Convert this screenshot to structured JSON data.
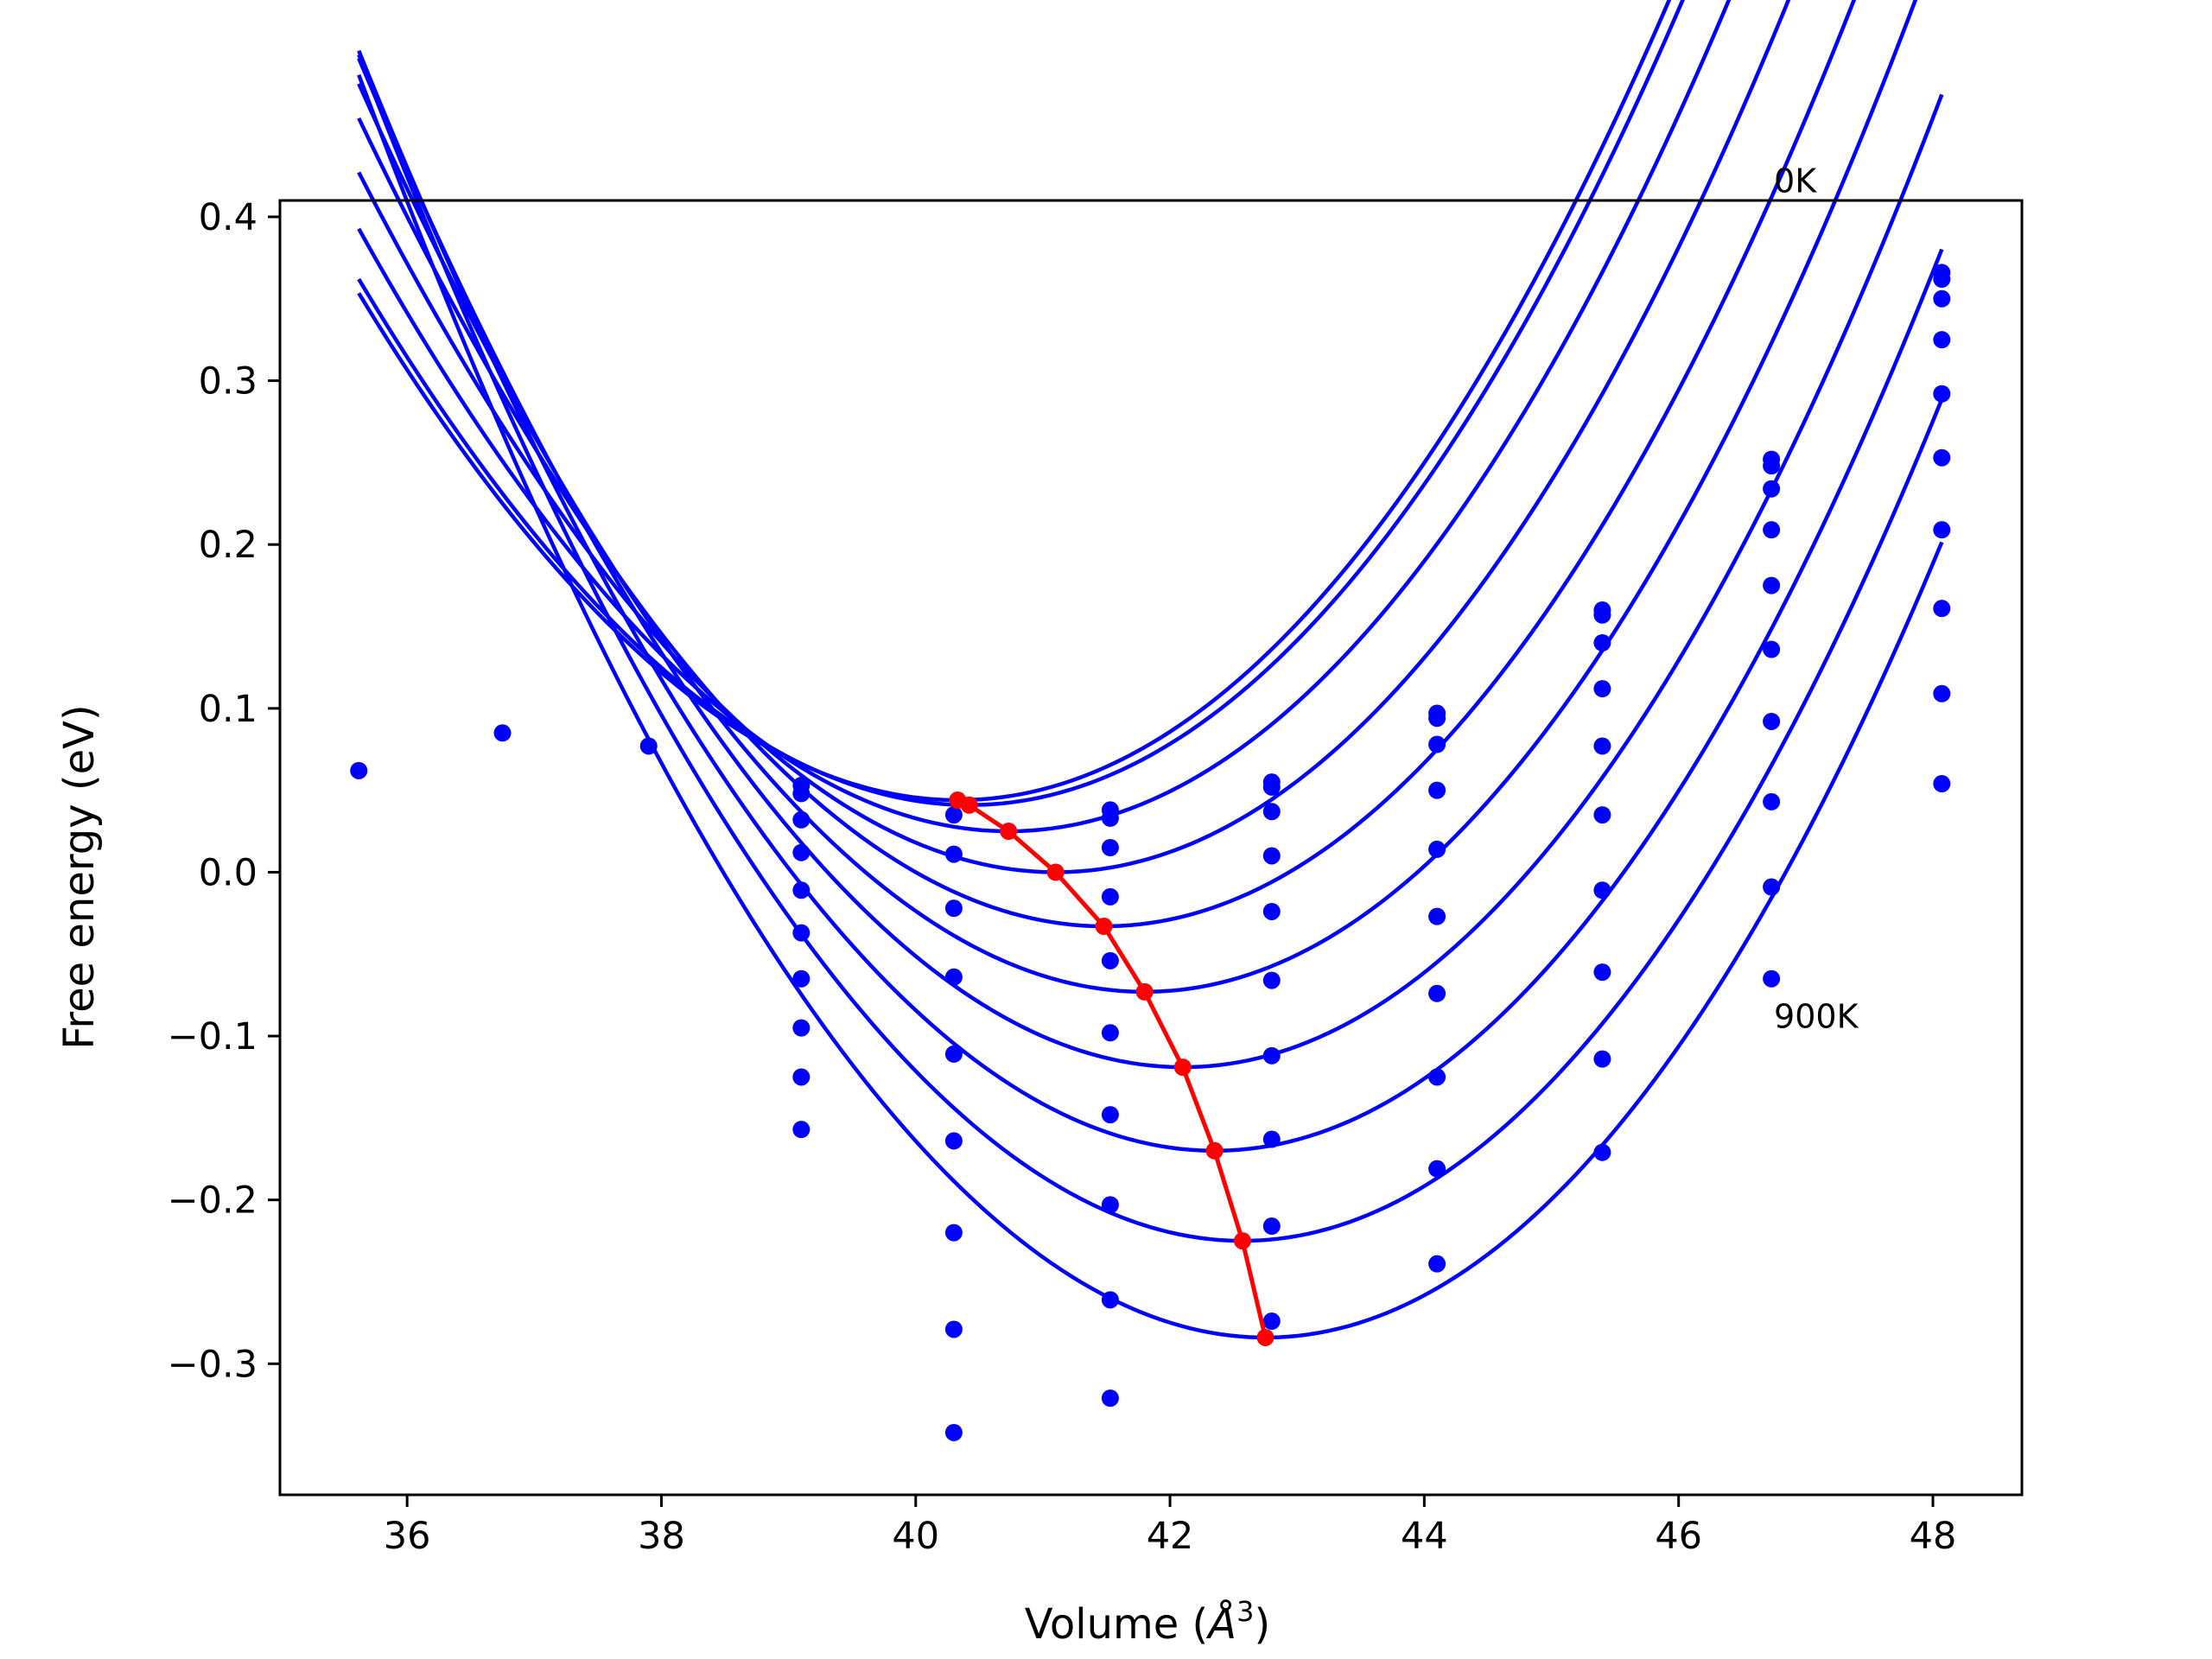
{
  "chart_data": {
    "type": "line",
    "title": "",
    "xlabel": "Volume (",
    "xlabel_symbol": "Å",
    "xlabel_power": "3",
    "xlabel_close": ")",
    "ylabel": "Free energy (eV)",
    "xlim": [
      35.0,
      48.7
    ],
    "ylim": [
      -0.38,
      0.41
    ],
    "x_ticks": [
      36,
      38,
      40,
      42,
      44,
      46,
      48
    ],
    "x_tick_labels": [
      "36",
      "38",
      "40",
      "42",
      "44",
      "46",
      "48"
    ],
    "y_ticks": [
      0.4,
      0.3,
      0.2,
      0.1,
      0.0,
      -0.1,
      -0.2,
      -0.3
    ],
    "y_tick_labels": [
      "0.4",
      "0.3",
      "0.2",
      "0.1",
      "0.0",
      "−0.1",
      "−0.2",
      "−0.3"
    ],
    "grid": false,
    "annotations": [
      {
        "text": "0K",
        "x": 46.75,
        "y": 0.415
      },
      {
        "text": "900K",
        "x": 46.75,
        "y": -0.095
      }
    ],
    "colors": {
      "curves": "#0000ff",
      "minima": "#ff0000",
      "axes": "#000000"
    },
    "series": [
      {
        "name": "",
        "kind": "fit",
        "vmin": 40.33,
        "emin": 0.044,
        "b": 0.0147,
        "c": 0.00016,
        "x_range": [
          35.62,
          48.07
        ]
      },
      {
        "name": "",
        "kind": "fit",
        "vmin": 40.42,
        "emin": 0.041,
        "b": 0.0147,
        "c": 0.00016,
        "x_range": [
          35.62,
          48.07
        ]
      },
      {
        "name": "",
        "kind": "fit",
        "vmin": 40.73,
        "emin": 0.025,
        "b": 0.0149,
        "c": 0.00016,
        "x_range": [
          35.62,
          48.07
        ]
      },
      {
        "name": "",
        "kind": "fit",
        "vmin": 41.1,
        "emin": 0.0,
        "b": 0.0151,
        "c": 0.00016,
        "x_range": [
          35.62,
          48.07
        ]
      },
      {
        "name": "",
        "kind": "fit",
        "vmin": 41.48,
        "emin": -0.033,
        "b": 0.0153,
        "c": 0.00016,
        "x_range": [
          35.62,
          48.07
        ]
      },
      {
        "name": "",
        "kind": "fit",
        "vmin": 41.8,
        "emin": -0.073,
        "b": 0.0155,
        "c": 0.00016,
        "x_range": [
          35.62,
          48.07
        ]
      },
      {
        "name": "",
        "kind": "fit",
        "vmin": 42.1,
        "emin": -0.119,
        "b": 0.0157,
        "c": 0.00016,
        "x_range": [
          35.62,
          48.07
        ]
      },
      {
        "name": "",
        "kind": "fit",
        "vmin": 42.35,
        "emin": -0.17,
        "b": 0.0159,
        "c": 0.00016,
        "x_range": [
          35.62,
          48.07
        ]
      },
      {
        "name": "",
        "kind": "fit",
        "vmin": 42.57,
        "emin": -0.225,
        "b": 0.0161,
        "c": 0.00016,
        "x_range": [
          35.62,
          48.07
        ]
      },
      {
        "name": "",
        "kind": "fit",
        "vmin": 42.75,
        "emin": -0.284,
        "b": 0.0163,
        "c": 0.00016,
        "x_range": [
          35.62,
          48.07
        ]
      }
    ],
    "data_points": [
      [
        35.62,
        0.062
      ],
      [
        36.75,
        0.085
      ],
      [
        37.9,
        0.077
      ],
      [
        39.1,
        0.053
      ],
      [
        39.1,
        0.048
      ],
      [
        39.1,
        0.032
      ],
      [
        39.1,
        0.012
      ],
      [
        39.1,
        -0.011
      ],
      [
        39.1,
        -0.037
      ],
      [
        39.1,
        -0.065
      ],
      [
        39.1,
        -0.095
      ],
      [
        39.1,
        -0.125
      ],
      [
        39.1,
        -0.157
      ],
      [
        40.3,
        0.035
      ],
      [
        40.3,
        0.011
      ],
      [
        40.3,
        -0.022
      ],
      [
        40.3,
        -0.064
      ],
      [
        40.3,
        -0.111
      ],
      [
        40.3,
        -0.164
      ],
      [
        40.3,
        -0.22
      ],
      [
        40.3,
        -0.279
      ],
      [
        40.3,
        -0.342
      ],
      [
        41.53,
        0.038
      ],
      [
        41.53,
        0.033
      ],
      [
        41.53,
        0.015
      ],
      [
        41.53,
        -0.015
      ],
      [
        41.53,
        -0.054
      ],
      [
        41.53,
        -0.098
      ],
      [
        41.53,
        -0.148
      ],
      [
        41.53,
        -0.203
      ],
      [
        41.53,
        -0.261
      ],
      [
        41.53,
        -0.321
      ],
      [
        42.8,
        0.055
      ],
      [
        42.8,
        0.052
      ],
      [
        42.8,
        0.037
      ],
      [
        42.8,
        0.01
      ],
      [
        42.8,
        -0.024
      ],
      [
        42.8,
        -0.066
      ],
      [
        42.8,
        -0.112
      ],
      [
        42.8,
        -0.163
      ],
      [
        42.8,
        -0.216
      ],
      [
        42.8,
        -0.274
      ],
      [
        44.1,
        0.097
      ],
      [
        44.1,
        0.094
      ],
      [
        44.1,
        0.078
      ],
      [
        44.1,
        0.05
      ],
      [
        44.1,
        0.014
      ],
      [
        44.1,
        -0.027
      ],
      [
        44.1,
        -0.074
      ],
      [
        44.1,
        -0.125
      ],
      [
        44.1,
        -0.181
      ],
      [
        44.1,
        -0.239
      ],
      [
        45.4,
        0.16
      ],
      [
        45.4,
        0.157
      ],
      [
        45.4,
        0.14
      ],
      [
        45.4,
        0.112
      ],
      [
        45.4,
        0.077
      ],
      [
        45.4,
        0.035
      ],
      [
        45.4,
        -0.011
      ],
      [
        45.4,
        -0.061
      ],
      [
        45.4,
        -0.114
      ],
      [
        45.4,
        -0.171
      ],
      [
        46.73,
        0.252
      ],
      [
        46.73,
        0.248
      ],
      [
        46.73,
        0.234
      ],
      [
        46.73,
        0.209
      ],
      [
        46.73,
        0.175
      ],
      [
        46.73,
        0.136
      ],
      [
        46.73,
        0.092
      ],
      [
        46.73,
        0.043
      ],
      [
        46.73,
        -0.009
      ],
      [
        46.73,
        -0.065
      ],
      [
        48.07,
        0.366
      ],
      [
        48.07,
        0.362
      ],
      [
        48.07,
        0.35
      ],
      [
        48.07,
        0.325
      ],
      [
        48.07,
        0.292
      ],
      [
        48.07,
        0.253
      ],
      [
        48.07,
        0.209
      ],
      [
        48.07,
        0.161
      ],
      [
        48.07,
        0.109
      ],
      [
        48.07,
        0.054
      ]
    ],
    "minima_line": {
      "name": "",
      "x": [
        40.33,
        40.42,
        40.73,
        41.1,
        41.48,
        41.8,
        42.1,
        42.35,
        42.57,
        42.75
      ],
      "y": [
        0.044,
        0.041,
        0.025,
        0.0,
        -0.033,
        -0.073,
        -0.119,
        -0.17,
        -0.225,
        -0.284
      ]
    }
  }
}
